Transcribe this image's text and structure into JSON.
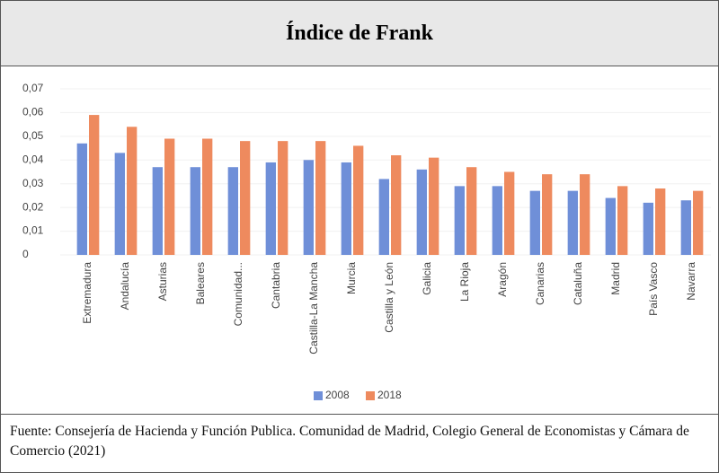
{
  "title": "Índice de Frank",
  "chart_data": {
    "type": "bar",
    "categories": [
      "Extremadura",
      "Andalucía",
      "Asturias",
      "Baleares",
      "Comunidad...",
      "Cantabria",
      "Castilla-La Mancha",
      "Murcia",
      "Castilla y León",
      "Galicia",
      "La Rioja",
      "Aragón",
      "Canarias",
      "Cataluña",
      "Madrid",
      "País Vasco",
      "Navarra"
    ],
    "series": [
      {
        "name": "2008",
        "color": "#6f8fd8",
        "values": [
          0.047,
          0.043,
          0.037,
          0.037,
          0.037,
          0.039,
          0.04,
          0.039,
          0.032,
          0.036,
          0.029,
          0.029,
          0.027,
          0.027,
          0.024,
          0.022,
          0.023
        ]
      },
      {
        "name": "2018",
        "color": "#ee8a5e",
        "values": [
          0.059,
          0.054,
          0.049,
          0.049,
          0.048,
          0.048,
          0.048,
          0.046,
          0.042,
          0.041,
          0.037,
          0.035,
          0.034,
          0.034,
          0.029,
          0.028,
          0.027
        ]
      }
    ],
    "ylim": [
      0,
      0.07
    ],
    "yticks": [
      0,
      {
        "value": 0.01,
        "label": "0,01"
      },
      {
        "value": 0.02,
        "label": "0,02"
      },
      {
        "value": 0.03,
        "label": "0,03"
      },
      {
        "value": 0.04,
        "label": "0,04"
      },
      {
        "value": 0.05,
        "label": "0,05"
      },
      {
        "value": 0.06,
        "label": "0,06"
      },
      {
        "value": 0.07,
        "label": "0,07"
      }
    ],
    "grid": true,
    "legend": "bottom"
  },
  "footer": "Fuente: Consejería de Hacienda y Función Publica. Comunidad de Madrid, Colegio General de Economistas y Cámara de Comercio (2021)"
}
